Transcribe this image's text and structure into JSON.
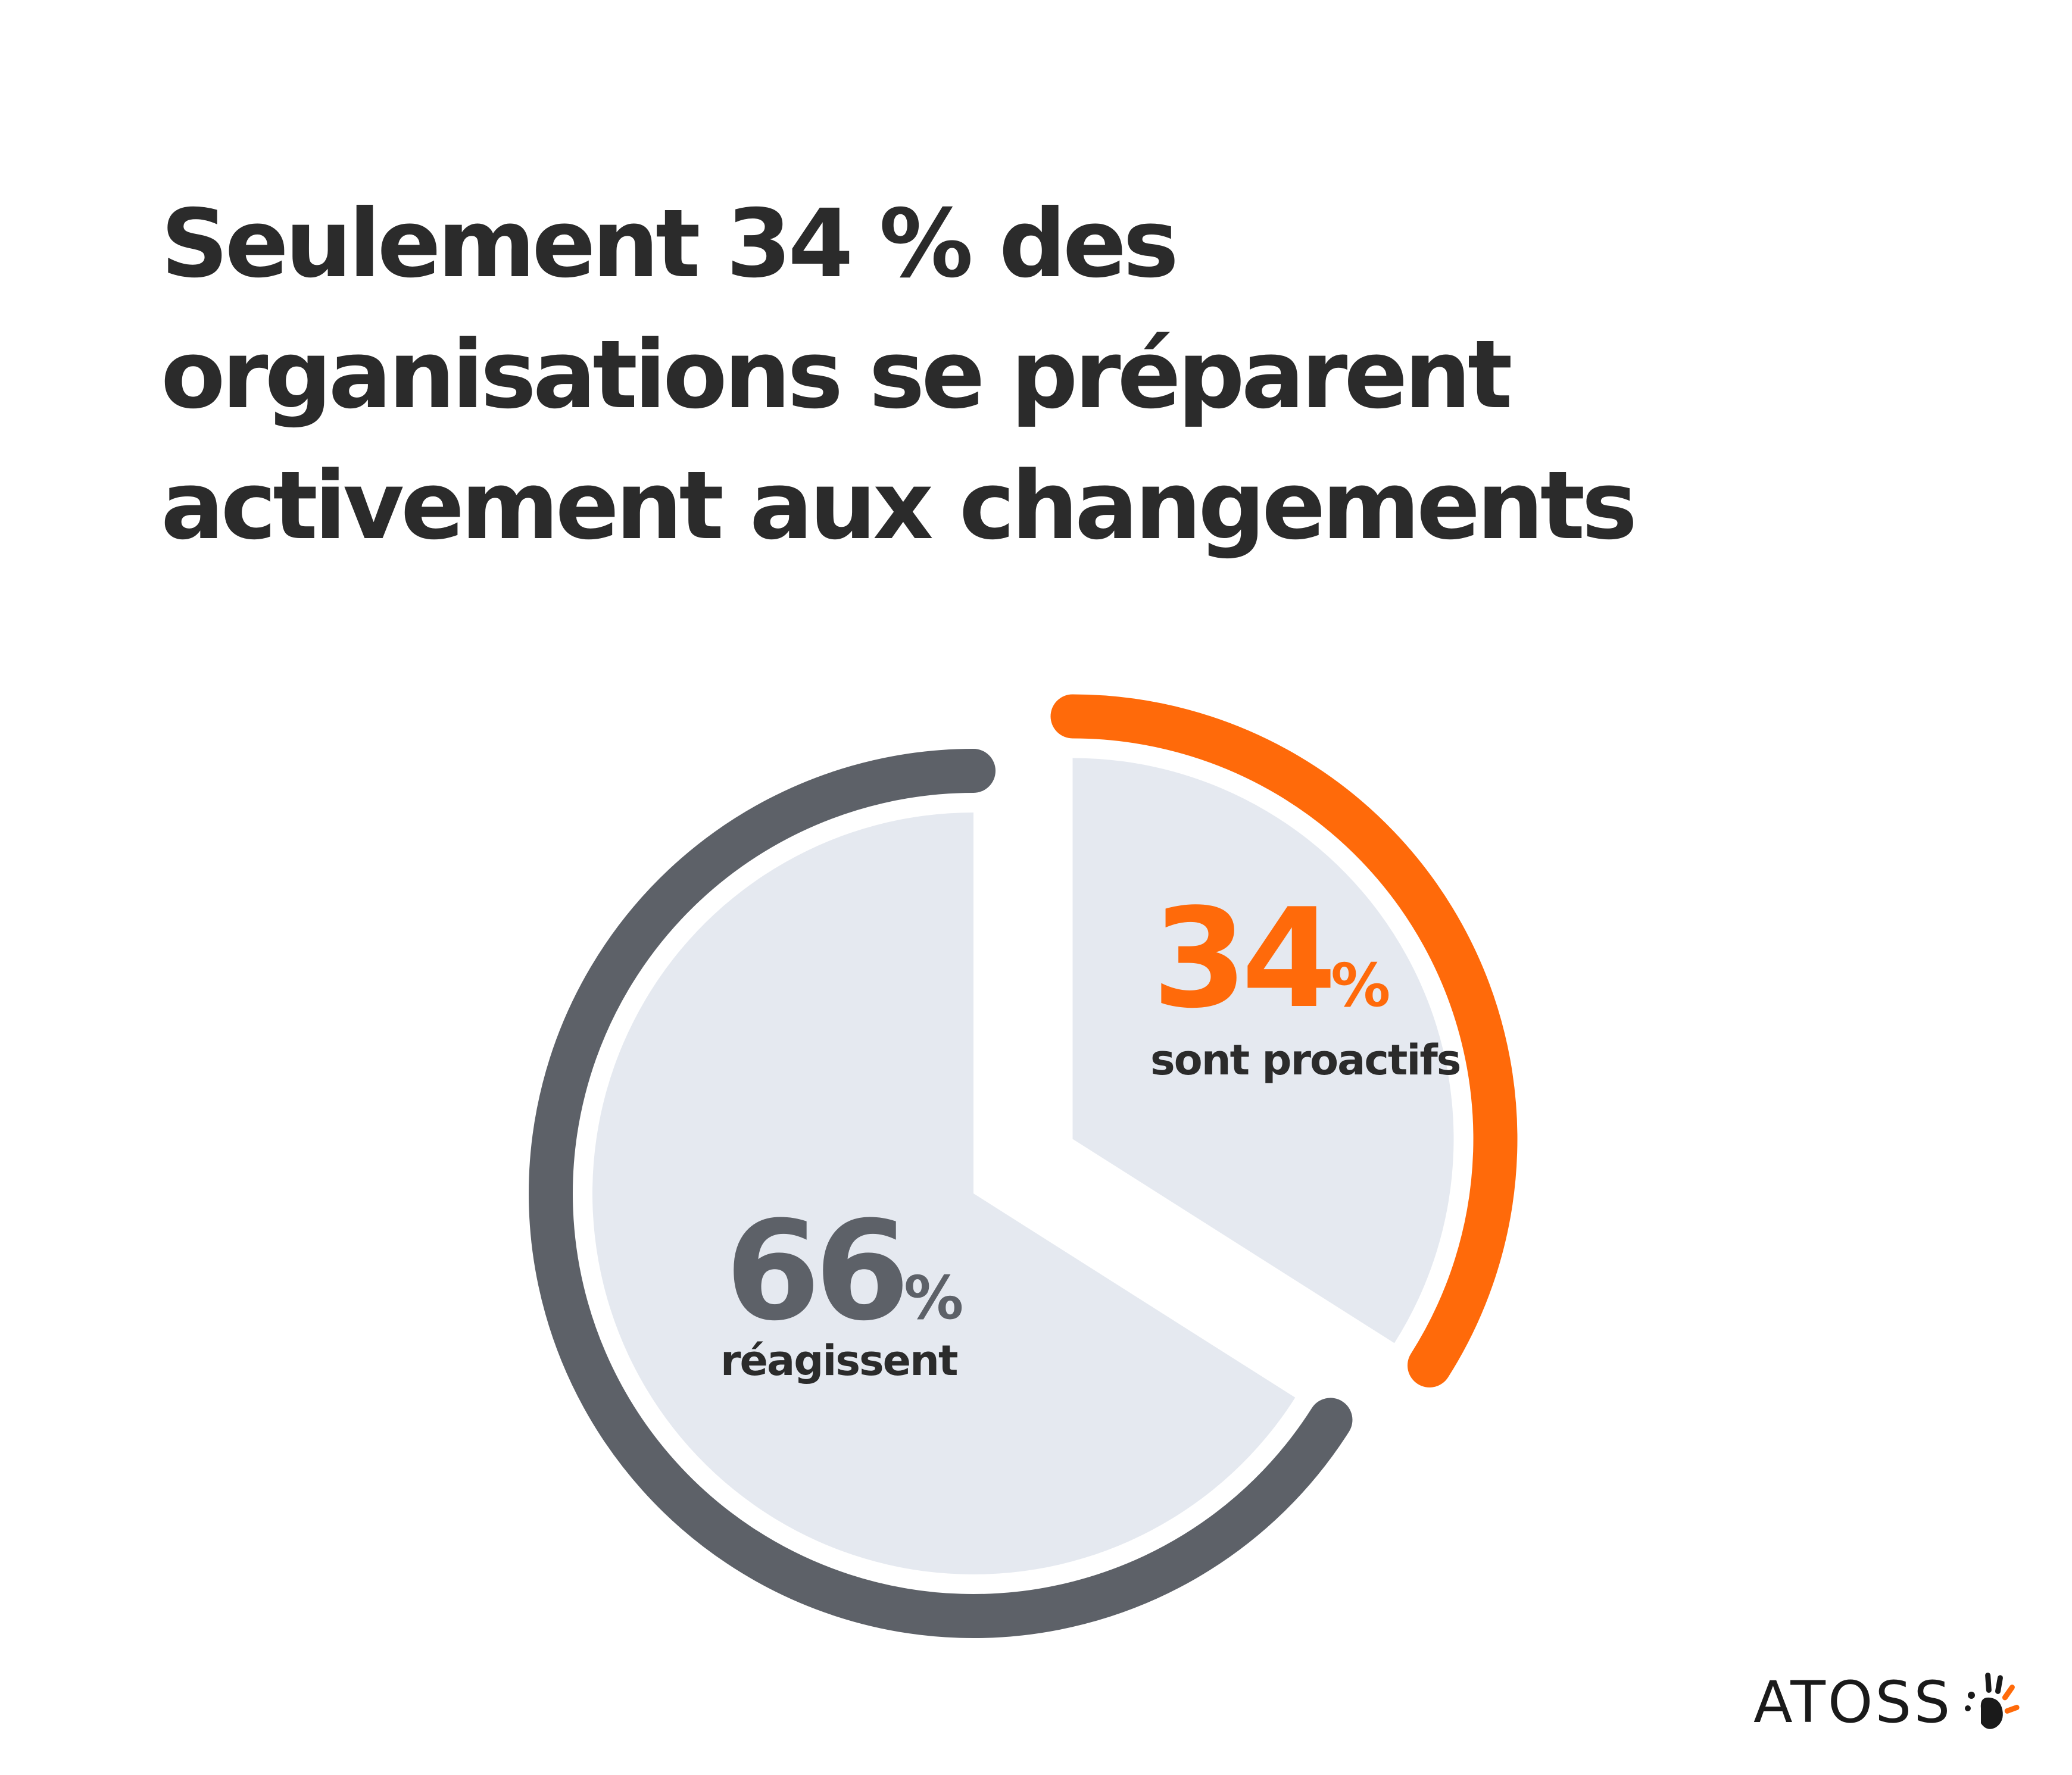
{
  "title_lines": [
    "Seulement 34 % des",
    "organisations se préparent",
    "activement aux changements"
  ],
  "chart_data": {
    "type": "pie",
    "title": "Seulement 34 % des organisations se préparent activement aux changements",
    "series": [
      {
        "name": "sont proactifs",
        "value": 34,
        "number": "34",
        "unit": "%",
        "color": "#ff6a0a",
        "fill": "#e5e9f0"
      },
      {
        "name": "réagissent",
        "value": 66,
        "number": "66",
        "unit": "%",
        "color": "#5d6168",
        "fill": "#e5e9f0"
      }
    ]
  },
  "brand": {
    "name": "ATOSS",
    "logo_icon": "hand-print-icon"
  }
}
